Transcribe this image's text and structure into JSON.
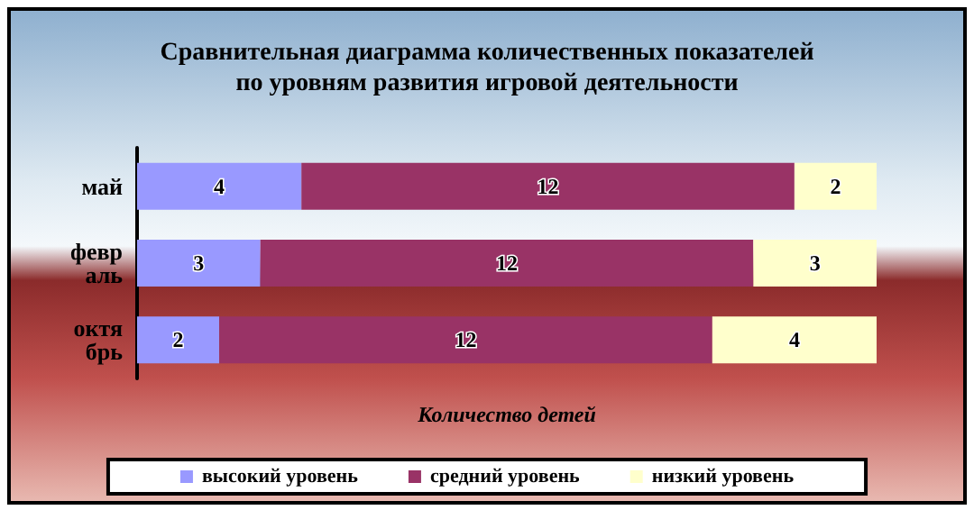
{
  "chart_data": {
    "type": "bar",
    "orientation": "horizontal",
    "stacked": true,
    "title": "Сравнительная диаграмма количественных показателей\nпо уровням развития игровой деятельности",
    "xlabel": "Количество детей",
    "categories": [
      "май",
      "февраль",
      "октябрь"
    ],
    "series": [
      {
        "name": "высокий уровень",
        "color": "#9999ff",
        "values": [
          4,
          3,
          2
        ]
      },
      {
        "name": "средний уровень",
        "color": "#993366",
        "values": [
          12,
          12,
          12
        ]
      },
      {
        "name": "низкий уровень",
        "color": "#ffffcc",
        "values": [
          2,
          3,
          4
        ]
      }
    ],
    "data_labels": true,
    "legend": "bottom",
    "grid": false,
    "tick_labels": "y"
  }
}
